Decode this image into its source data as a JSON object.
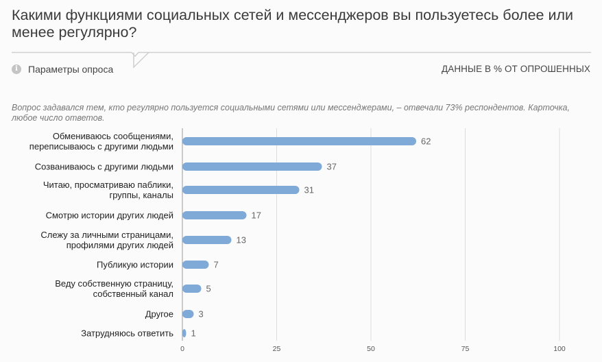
{
  "header": {
    "title": "Какими функциями социальных сетей и мессенджеров вы пользуетесь более или менее регулярно?",
    "params_label": "Параметры опроса",
    "info_icon_glyph": "i",
    "units_label": "ДАННЫЕ В % ОТ ОПРОШЕННЫХ"
  },
  "note": "Вопрос задавался тем, кто регулярно пользуется социальными сетями или мессенджерами, – отвечали 73% респондентов. Карточка, любое число ответов.",
  "colors": {
    "bar": "#7fa9d6",
    "grid": "#dcdcdc",
    "rule": "#cfcfcf"
  },
  "chart_data": {
    "type": "bar",
    "orientation": "horizontal",
    "categories": [
      [
        "Обмениваюсь сообщениями,",
        "переписываюсь с другими людьми"
      ],
      [
        "Созваниваюсь с другими людьми"
      ],
      [
        "Читаю, просматриваю паблики,",
        "группы, каналы"
      ],
      [
        "Смотрю истории других людей"
      ],
      [
        "Слежу за личными страницами,",
        "профилями других людей"
      ],
      [
        "Публикую истории"
      ],
      [
        "Веду собственную страницу,",
        "собственный канал"
      ],
      [
        "Другое"
      ],
      [
        "Затрудняюсь ответить"
      ]
    ],
    "values": [
      62,
      37,
      31,
      17,
      13,
      7,
      5,
      3,
      1
    ],
    "xlim": [
      0,
      100
    ],
    "xticks": [
      0,
      25,
      50,
      75,
      100
    ],
    "grid": true
  }
}
